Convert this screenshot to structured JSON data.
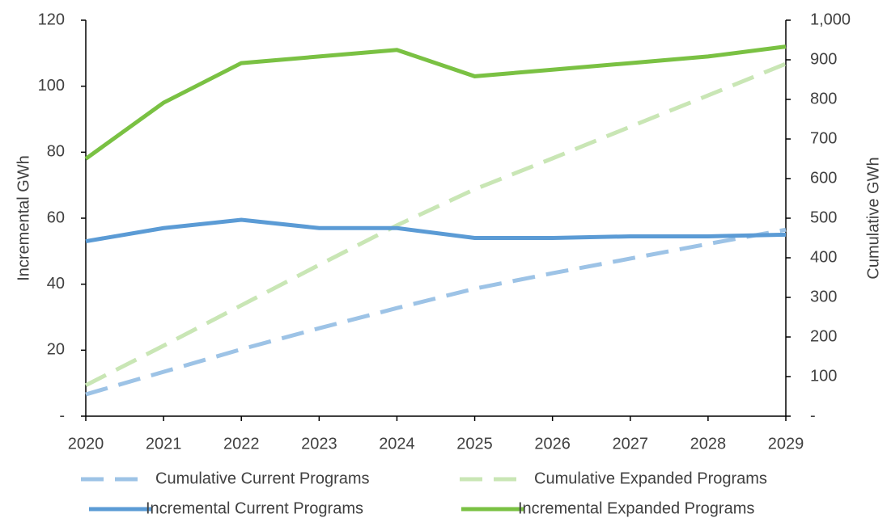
{
  "chart_data": {
    "type": "line",
    "x_label_left": "Incremental GWh",
    "y2_label": "Cumulative GWh",
    "categories": [
      "2020",
      "2021",
      "2022",
      "2023",
      "2024",
      "2025",
      "2026",
      "2027",
      "2028",
      "2029"
    ],
    "ylim": [
      0,
      120
    ],
    "yticks": [
      {
        "value": 0,
        "label": "-"
      },
      20,
      40,
      60,
      80,
      100,
      120
    ],
    "y2lim": [
      0,
      1000
    ],
    "y2ticks": [
      {
        "value": 0,
        "label": "-"
      },
      100,
      200,
      300,
      400,
      500,
      600,
      700,
      800,
      900,
      {
        "value": 1000,
        "label": "1,000"
      }
    ],
    "legend": "bottom",
    "series": [
      {
        "name": "Cumulative Current Programs",
        "color": "#9dc3e6",
        "dashed": true,
        "axis": "y2",
        "values": [
          55,
          112,
          169,
          222,
          273,
          322,
          361,
          398,
          435,
          471
        ]
      },
      {
        "name": "Cumulative Expanded Programs",
        "color": "#c9e6b5",
        "dashed": true,
        "axis": "y2",
        "values": [
          78,
          178,
          280,
          382,
          482,
          573,
          651,
          731,
          810,
          890
        ]
      },
      {
        "name": "Incremental Current Programs",
        "color": "#5b9bd5",
        "dashed": false,
        "values": [
          53,
          57,
          59.5,
          57,
          57,
          54,
          54,
          54.5,
          54.5,
          55
        ]
      },
      {
        "name": "Incremental Expanded Programs",
        "color": "#7ac143",
        "dashed": false,
        "values": [
          78,
          95,
          107,
          109,
          111,
          103,
          105,
          107,
          109,
          112
        ]
      }
    ]
  }
}
